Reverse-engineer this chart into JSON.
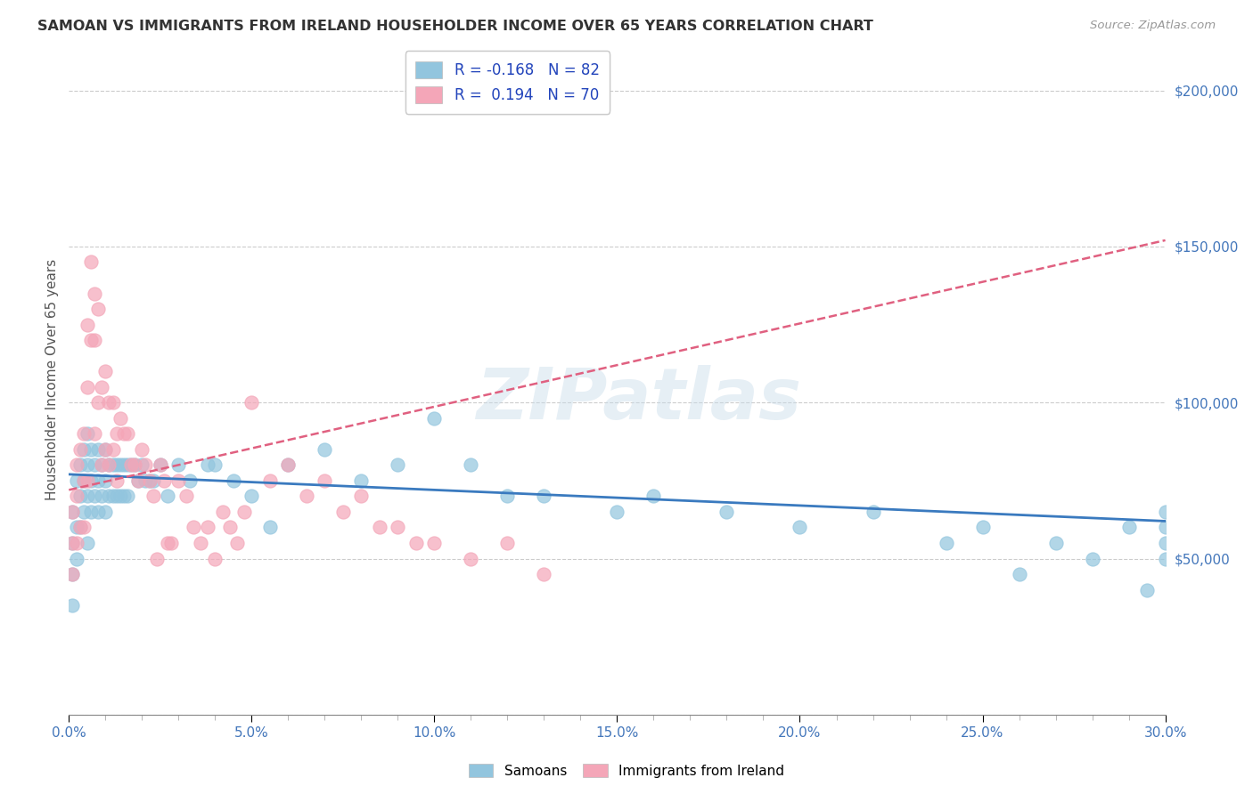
{
  "title": "SAMOAN VS IMMIGRANTS FROM IRELAND HOUSEHOLDER INCOME OVER 65 YEARS CORRELATION CHART",
  "source": "Source: ZipAtlas.com",
  "ylabel": "Householder Income Over 65 years",
  "xlim": [
    0.0,
    0.3
  ],
  "ylim": [
    0,
    215000
  ],
  "xticks": [
    0.0,
    0.05,
    0.1,
    0.15,
    0.2,
    0.25,
    0.3
  ],
  "xticklabels": [
    "0.0%",
    "5.0%",
    "10.0%",
    "15.0%",
    "20.0%",
    "25.0%",
    "30.0%"
  ],
  "yticks": [
    0,
    50000,
    100000,
    150000,
    200000
  ],
  "yticklabels": [
    "",
    "$50,000",
    "$100,000",
    "$150,000",
    "$200,000"
  ],
  "blue_color": "#92c5de",
  "pink_color": "#f4a6b8",
  "blue_line_color": "#3a7abf",
  "pink_line_color": "#e06080",
  "legend_label1": "Samoans",
  "legend_label2": "Immigrants from Ireland",
  "watermark": "ZIPatlas",
  "title_color": "#333333",
  "axis_label_color": "#555555",
  "tick_color": "#4477bb",
  "grid_color": "#cccccc",
  "blue_scatter_x": [
    0.001,
    0.001,
    0.001,
    0.001,
    0.002,
    0.002,
    0.002,
    0.003,
    0.003,
    0.003,
    0.004,
    0.004,
    0.004,
    0.005,
    0.005,
    0.005,
    0.005,
    0.006,
    0.006,
    0.006,
    0.007,
    0.007,
    0.008,
    0.008,
    0.008,
    0.009,
    0.009,
    0.01,
    0.01,
    0.01,
    0.011,
    0.011,
    0.012,
    0.012,
    0.013,
    0.013,
    0.014,
    0.014,
    0.015,
    0.015,
    0.016,
    0.016,
    0.017,
    0.018,
    0.019,
    0.02,
    0.021,
    0.022,
    0.023,
    0.025,
    0.027,
    0.03,
    0.033,
    0.038,
    0.04,
    0.045,
    0.05,
    0.055,
    0.06,
    0.07,
    0.08,
    0.09,
    0.1,
    0.11,
    0.12,
    0.13,
    0.15,
    0.16,
    0.18,
    0.2,
    0.22,
    0.24,
    0.25,
    0.26,
    0.27,
    0.28,
    0.29,
    0.295,
    0.3,
    0.3,
    0.3,
    0.3
  ],
  "blue_scatter_y": [
    65000,
    55000,
    45000,
    35000,
    75000,
    60000,
    50000,
    80000,
    70000,
    60000,
    85000,
    75000,
    65000,
    90000,
    80000,
    70000,
    55000,
    85000,
    75000,
    65000,
    80000,
    70000,
    85000,
    75000,
    65000,
    80000,
    70000,
    85000,
    75000,
    65000,
    80000,
    70000,
    80000,
    70000,
    80000,
    70000,
    80000,
    70000,
    80000,
    70000,
    80000,
    70000,
    80000,
    80000,
    75000,
    80000,
    75000,
    75000,
    75000,
    80000,
    70000,
    80000,
    75000,
    80000,
    80000,
    75000,
    70000,
    60000,
    80000,
    85000,
    75000,
    80000,
    95000,
    80000,
    70000,
    70000,
    65000,
    70000,
    65000,
    60000,
    65000,
    55000,
    60000,
    45000,
    55000,
    50000,
    60000,
    40000,
    55000,
    50000,
    60000,
    65000
  ],
  "pink_scatter_x": [
    0.001,
    0.001,
    0.001,
    0.002,
    0.002,
    0.002,
    0.003,
    0.003,
    0.004,
    0.004,
    0.004,
    0.005,
    0.005,
    0.005,
    0.006,
    0.006,
    0.007,
    0.007,
    0.007,
    0.008,
    0.008,
    0.009,
    0.009,
    0.01,
    0.01,
    0.011,
    0.011,
    0.012,
    0.012,
    0.013,
    0.013,
    0.014,
    0.015,
    0.016,
    0.017,
    0.018,
    0.019,
    0.02,
    0.021,
    0.022,
    0.023,
    0.024,
    0.025,
    0.026,
    0.027,
    0.028,
    0.03,
    0.032,
    0.034,
    0.036,
    0.038,
    0.04,
    0.042,
    0.044,
    0.046,
    0.048,
    0.05,
    0.055,
    0.06,
    0.065,
    0.07,
    0.075,
    0.08,
    0.085,
    0.09,
    0.095,
    0.1,
    0.11,
    0.12,
    0.13
  ],
  "pink_scatter_y": [
    65000,
    55000,
    45000,
    80000,
    70000,
    55000,
    85000,
    60000,
    90000,
    75000,
    60000,
    125000,
    105000,
    75000,
    145000,
    120000,
    135000,
    120000,
    90000,
    130000,
    100000,
    105000,
    80000,
    110000,
    85000,
    100000,
    80000,
    100000,
    85000,
    90000,
    75000,
    95000,
    90000,
    90000,
    80000,
    80000,
    75000,
    85000,
    80000,
    75000,
    70000,
    50000,
    80000,
    75000,
    55000,
    55000,
    75000,
    70000,
    60000,
    55000,
    60000,
    50000,
    65000,
    60000,
    55000,
    65000,
    100000,
    75000,
    80000,
    70000,
    75000,
    65000,
    70000,
    60000,
    60000,
    55000,
    55000,
    50000,
    55000,
    45000
  ],
  "blue_line_x0": 0.0,
  "blue_line_x1": 0.3,
  "blue_line_y0": 77000,
  "blue_line_y1": 62000,
  "pink_line_x0": 0.0,
  "pink_line_x1": 0.3,
  "pink_line_y0": 72000,
  "pink_line_y1": 152000
}
